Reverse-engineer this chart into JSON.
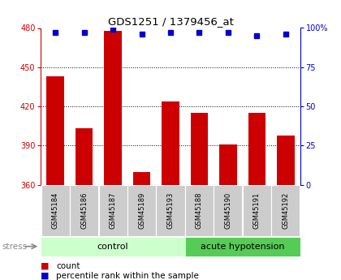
{
  "title": "GDS1251 / 1379456_at",
  "samples": [
    "GSM45184",
    "GSM45186",
    "GSM45187",
    "GSM45189",
    "GSM45193",
    "GSM45188",
    "GSM45190",
    "GSM45191",
    "GSM45192"
  ],
  "counts": [
    443,
    403,
    478,
    370,
    424,
    415,
    391,
    415,
    398
  ],
  "percentile_ranks": [
    97,
    97,
    99,
    96,
    97,
    97,
    97,
    95,
    96
  ],
  "n_control": 5,
  "n_acute": 4,
  "ylim_left": [
    360,
    480
  ],
  "ylim_right": [
    0,
    100
  ],
  "bar_color": "#cc0000",
  "dot_color": "#0000cc",
  "grid_ticks": [
    390,
    420,
    450
  ],
  "left_ticks": [
    360,
    390,
    420,
    450,
    480
  ],
  "right_ticks": [
    0,
    25,
    50,
    75,
    100
  ],
  "control_color": "#ccffcc",
  "acute_color": "#55cc55",
  "tick_bg_color": "#cccccc",
  "legend_red_label": "count",
  "legend_blue_label": "percentile rank within the sample",
  "stress_label": "stress",
  "control_label": "control",
  "acute_label": "acute hypotension"
}
